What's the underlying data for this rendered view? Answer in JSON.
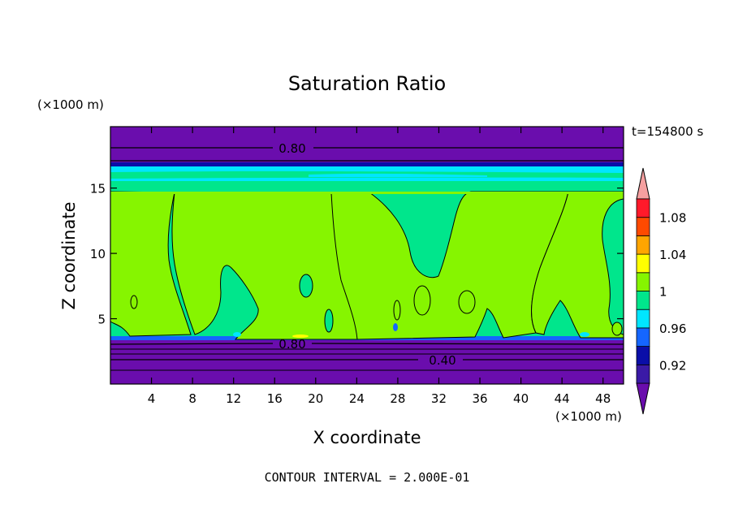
{
  "chart_data": {
    "type": "contour",
    "title": "Saturation Ratio",
    "xlabel": "X coordinate",
    "ylabel": "Z coordinate",
    "x_unit": "(×1000 m)",
    "y_unit": "(×1000 m)",
    "time_label": "t=154800 s",
    "footer": "CONTOUR INTERVAL = 2.000E-01",
    "xlim": [
      0,
      50
    ],
    "ylim": [
      0,
      19.7
    ],
    "x_ticks": [
      4,
      8,
      12,
      16,
      20,
      24,
      28,
      32,
      36,
      40,
      44,
      48
    ],
    "y_ticks": [
      5,
      10,
      15
    ],
    "contour_labels": [
      {
        "text": "0.80",
        "x": 17.5,
        "z": 18.2
      },
      {
        "text": "0.80",
        "x": 17.5,
        "z": 3.1
      },
      {
        "text": "0.40",
        "x": 31.5,
        "z": 1.8
      }
    ],
    "colorbar": {
      "levels": [
        0.92,
        0.96,
        1,
        1.04,
        1.08
      ],
      "labels": [
        "0.92",
        "0.96",
        "1",
        "1.04",
        "1.08"
      ],
      "bands": [
        {
          "from": null,
          "to": 0.9,
          "color": "#6a0dad"
        },
        {
          "from": 0.9,
          "to": 0.92,
          "color": "#3a1aa6"
        },
        {
          "from": 0.92,
          "to": 0.94,
          "color": "#0a0ea8"
        },
        {
          "from": 0.94,
          "to": 0.96,
          "color": "#1566ff"
        },
        {
          "from": 0.96,
          "to": 0.98,
          "color": "#00e6ff"
        },
        {
          "from": 0.98,
          "to": 1.0,
          "color": "#00e68c"
        },
        {
          "from": 1.0,
          "to": 1.02,
          "color": "#86f500"
        },
        {
          "from": 1.02,
          "to": 1.04,
          "color": "#ffff00"
        },
        {
          "from": 1.04,
          "to": 1.06,
          "color": "#ffa500"
        },
        {
          "from": 1.06,
          "to": 1.08,
          "color": "#ff4a00"
        },
        {
          "from": 1.08,
          "to": 1.1,
          "color": "#ff1a2a"
        },
        {
          "from": 1.1,
          "to": null,
          "color": "#f5a0a0"
        }
      ]
    },
    "layers": [
      {
        "z_from": 0,
        "z_to": 3.5,
        "saturation": "< 0.9",
        "color": "#6a0dad"
      },
      {
        "z_from": 3.5,
        "z_to": 15,
        "saturation": "0.98 - 1.02 (mixed)",
        "color": "#00e68c"
      },
      {
        "z_from": 15,
        "z_to": 16,
        "saturation": "0.98 - 1.0",
        "color": "#00e68c"
      },
      {
        "z_from": 16,
        "z_to": 17,
        "saturation": "0.94 - 0.98",
        "color": "#00e6ff"
      },
      {
        "z_from": 17,
        "z_to": 19.7,
        "saturation": "< 0.9",
        "color": "#6a0dad"
      }
    ]
  }
}
